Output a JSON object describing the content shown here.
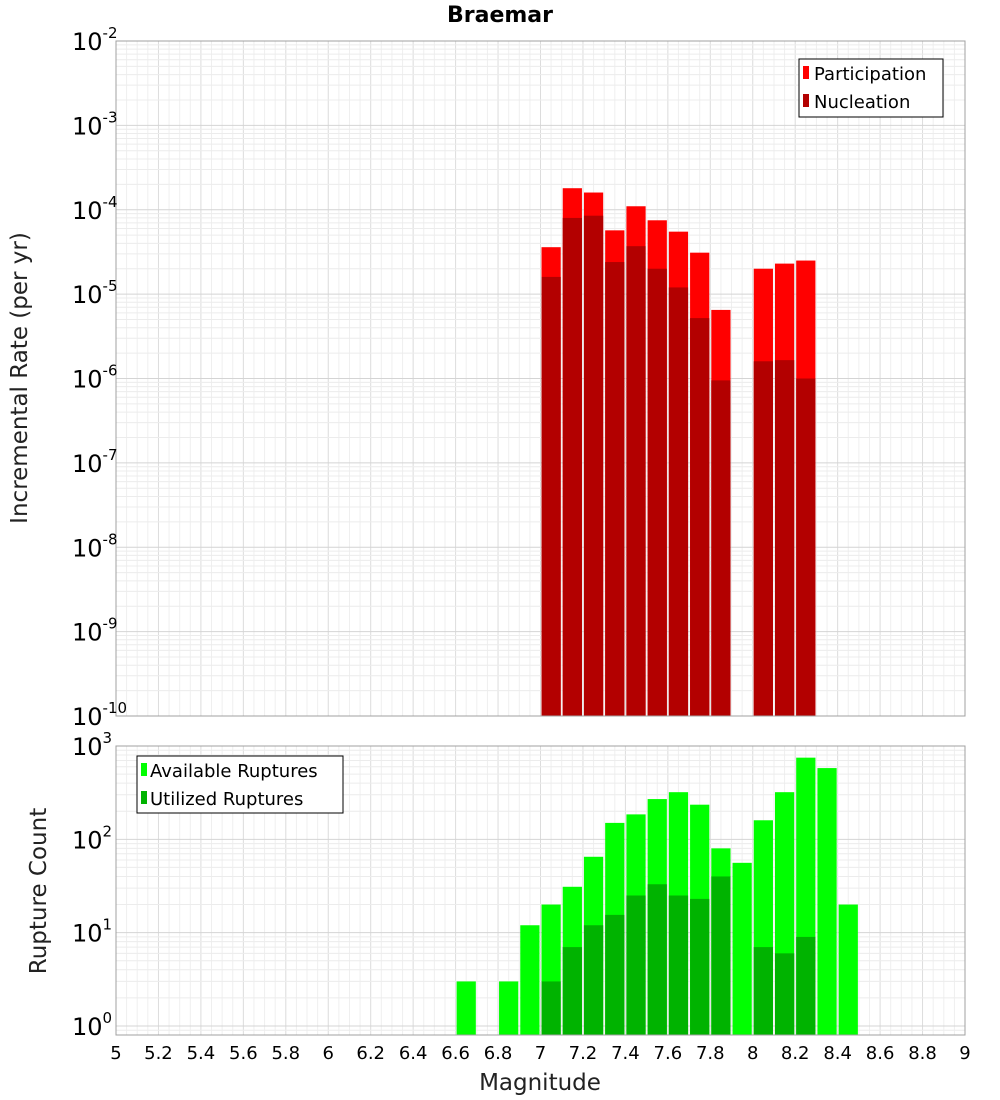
{
  "chart_data": [
    {
      "type": "bar",
      "title": "Braemar",
      "ylabel": "Incremental Rate (per yr)",
      "yscale": "log",
      "ylim": [
        1e-10,
        0.01
      ],
      "y_ticks": [
        {
          "base": "10",
          "exp": "-2",
          "value": 0.01
        },
        {
          "base": "10",
          "exp": "-3",
          "value": 0.001
        },
        {
          "base": "10",
          "exp": "-4",
          "value": 0.0001
        },
        {
          "base": "10",
          "exp": "-5",
          "value": 1e-05
        },
        {
          "base": "10",
          "exp": "-6",
          "value": 1e-06
        },
        {
          "base": "10",
          "exp": "-7",
          "value": 1e-07
        },
        {
          "base": "10",
          "exp": "-8",
          "value": 1e-08
        },
        {
          "base": "10",
          "exp": "-9",
          "value": 1e-09
        },
        {
          "base": "10",
          "exp": "-10",
          "value": 1e-10
        }
      ],
      "legend_position": "top-right",
      "grid": true,
      "bin_width": 0.1,
      "series": [
        {
          "name": "Participation",
          "color": "#ff0000",
          "points": [
            {
              "x": 7.05,
              "y": 3.6e-05
            },
            {
              "x": 7.15,
              "y": 0.00018
            },
            {
              "x": 7.25,
              "y": 0.00016
            },
            {
              "x": 7.35,
              "y": 5.7e-05
            },
            {
              "x": 7.45,
              "y": 0.00011
            },
            {
              "x": 7.55,
              "y": 7.5e-05
            },
            {
              "x": 7.65,
              "y": 5.5e-05
            },
            {
              "x": 7.75,
              "y": 3.1e-05
            },
            {
              "x": 7.85,
              "y": 6.5e-06
            },
            {
              "x": 8.05,
              "y": 2e-05
            },
            {
              "x": 8.15,
              "y": 2.3e-05
            },
            {
              "x": 8.25,
              "y": 2.5e-05
            }
          ]
        },
        {
          "name": "Nucleation",
          "color": "#b30000",
          "points": [
            {
              "x": 7.05,
              "y": 1.6e-05
            },
            {
              "x": 7.15,
              "y": 8e-05
            },
            {
              "x": 7.25,
              "y": 8.5e-05
            },
            {
              "x": 7.35,
              "y": 2.4e-05
            },
            {
              "x": 7.45,
              "y": 3.7e-05
            },
            {
              "x": 7.55,
              "y": 2e-05
            },
            {
              "x": 7.65,
              "y": 1.2e-05
            },
            {
              "x": 7.75,
              "y": 5.2e-06
            },
            {
              "x": 7.85,
              "y": 9.5e-07
            },
            {
              "x": 8.05,
              "y": 1.6e-06
            },
            {
              "x": 8.15,
              "y": 1.65e-06
            },
            {
              "x": 8.25,
              "y": 1e-06
            }
          ]
        }
      ]
    },
    {
      "type": "bar",
      "ylabel": "Rupture Count",
      "xlabel": "Magnitude",
      "yscale": "log",
      "ylim": [
        0.8,
        1000
      ],
      "xlim": [
        5,
        9
      ],
      "y_ticks": [
        {
          "base": "10",
          "exp": "3",
          "value": 1000
        },
        {
          "base": "10",
          "exp": "2",
          "value": 100
        },
        {
          "base": "10",
          "exp": "1",
          "value": 10
        },
        {
          "base": "10",
          "exp": "0",
          "value": 1
        }
      ],
      "x_ticks": [
        "5",
        "5.2",
        "5.4",
        "5.6",
        "5.8",
        "6",
        "6.2",
        "6.4",
        "6.6",
        "6.8",
        "7",
        "7.2",
        "7.4",
        "7.6",
        "7.8",
        "8",
        "8.2",
        "8.4",
        "8.6",
        "8.8",
        "9"
      ],
      "legend_position": "top-left",
      "grid": true,
      "bin_width": 0.1,
      "series": [
        {
          "name": "Available Ruptures",
          "color": "#00ff00",
          "points": [
            {
              "x": 6.65,
              "y": 3
            },
            {
              "x": 6.85,
              "y": 3
            },
            {
              "x": 6.95,
              "y": 12
            },
            {
              "x": 7.05,
              "y": 20
            },
            {
              "x": 7.15,
              "y": 31
            },
            {
              "x": 7.25,
              "y": 65
            },
            {
              "x": 7.35,
              "y": 150
            },
            {
              "x": 7.45,
              "y": 185
            },
            {
              "x": 7.55,
              "y": 270
            },
            {
              "x": 7.65,
              "y": 320
            },
            {
              "x": 7.75,
              "y": 235
            },
            {
              "x": 7.85,
              "y": 80
            },
            {
              "x": 7.95,
              "y": 56
            },
            {
              "x": 8.05,
              "y": 160
            },
            {
              "x": 8.15,
              "y": 320
            },
            {
              "x": 8.25,
              "y": 750
            },
            {
              "x": 8.35,
              "y": 580
            },
            {
              "x": 8.45,
              "y": 20
            }
          ]
        },
        {
          "name": "Utilized Ruptures",
          "color": "#00b300",
          "points": [
            {
              "x": 7.05,
              "y": 3
            },
            {
              "x": 7.15,
              "y": 7
            },
            {
              "x": 7.25,
              "y": 12
            },
            {
              "x": 7.35,
              "y": 15.5
            },
            {
              "x": 7.45,
              "y": 25
            },
            {
              "x": 7.55,
              "y": 33
            },
            {
              "x": 7.65,
              "y": 25
            },
            {
              "x": 7.75,
              "y": 23
            },
            {
              "x": 7.85,
              "y": 40
            },
            {
              "x": 8.05,
              "y": 7
            },
            {
              "x": 8.15,
              "y": 6
            },
            {
              "x": 8.25,
              "y": 9
            }
          ]
        }
      ]
    }
  ]
}
